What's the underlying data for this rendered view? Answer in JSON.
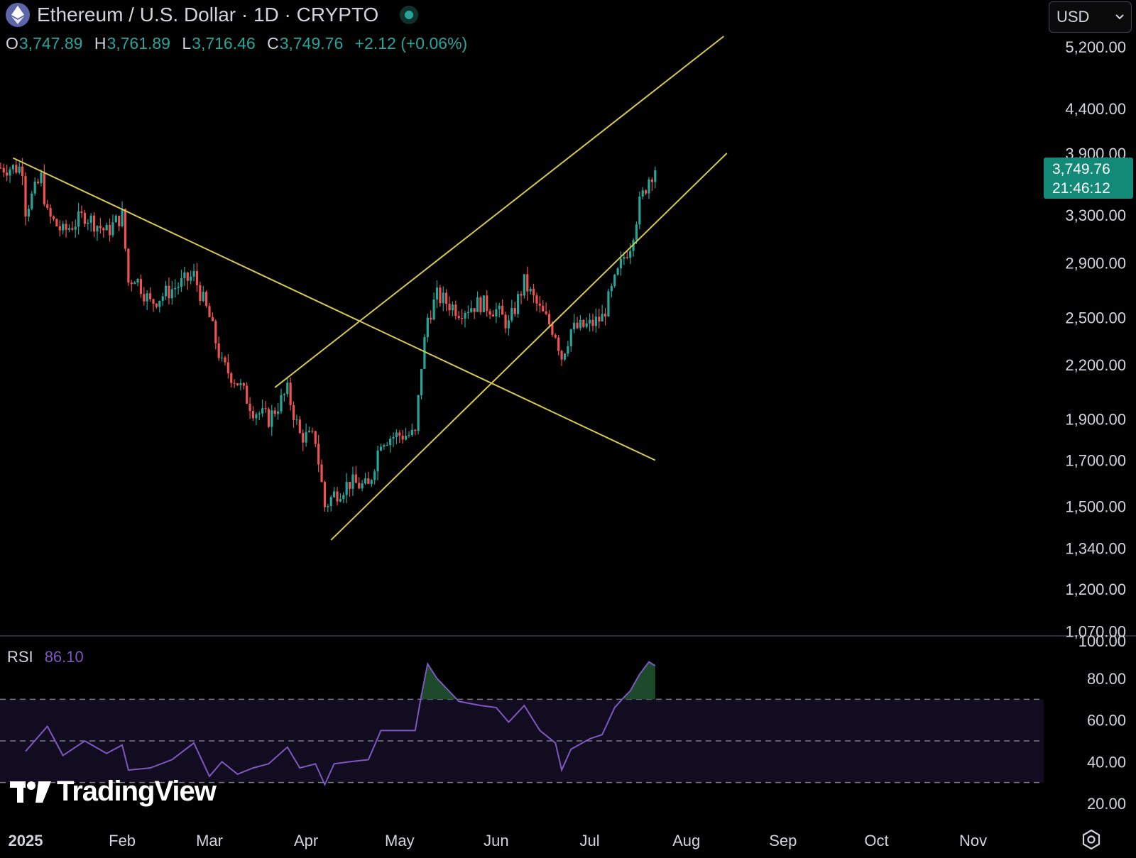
{
  "header": {
    "symbol_title": "Ethereum / U.S. Dollar · 1D · CRYPTO",
    "ohlc": {
      "o_label": "O",
      "o": "3,747.89",
      "h_label": "H",
      "h": "3,761.89",
      "l_label": "L",
      "l": "3,716.46",
      "c_label": "C",
      "c": "3,749.76",
      "change": "+2.12 (+0.06%)"
    }
  },
  "currency": {
    "label": "USD"
  },
  "price_tag": {
    "price": "3,749.76",
    "countdown": "21:46:12"
  },
  "rsi": {
    "label": "RSI",
    "value": "86.10"
  },
  "logo": {
    "text": "TradingView"
  },
  "colors": {
    "up": "#26a69a",
    "down": "#ef5350",
    "trendline": "#d6c94c",
    "rsi_line": "#7e57c2",
    "rsi_band": "#110c1f",
    "rsi_overbought_fill": "#1e4a2c"
  },
  "chart_data": {
    "type": "candlestick",
    "price_axis_ticks": [
      "5,200.00",
      "4,400.00",
      "3,900.00",
      "3,300.00",
      "2,900.00",
      "2,500.00",
      "2,200.00",
      "1,900.00",
      "1,700.00",
      "1,500.00",
      "1,340.00",
      "1,200.00",
      "1,070.00"
    ],
    "price_axis_scale": "log",
    "rsi_axis_ticks": [
      "100.00",
      "80.00",
      "60.00",
      "40.00",
      "20.00"
    ],
    "rsi_levels": [
      70,
      50,
      30
    ],
    "x_axis_labels": [
      "2025",
      "Feb",
      "Mar",
      "Apr",
      "May",
      "Jun",
      "Jul",
      "Aug",
      "Sep",
      "Oct",
      "Nov"
    ],
    "close_series": [
      {
        "date": "2025-01-01",
        "close": 3350
      },
      {
        "date": "2025-01-06",
        "close": 3650
      },
      {
        "date": "2025-01-08",
        "close": 3300
      },
      {
        "date": "2025-01-13",
        "close": 3150
      },
      {
        "date": "2025-01-20",
        "close": 3300
      },
      {
        "date": "2025-01-27",
        "close": 3150
      },
      {
        "date": "2025-02-01",
        "close": 3300
      },
      {
        "date": "2025-02-03",
        "close": 2750
      },
      {
        "date": "2025-02-05",
        "close": 2800
      },
      {
        "date": "2025-02-10",
        "close": 2600
      },
      {
        "date": "2025-02-17",
        "close": 2700
      },
      {
        "date": "2025-02-24",
        "close": 2800
      },
      {
        "date": "2025-03-01",
        "close": 2500
      },
      {
        "date": "2025-03-05",
        "close": 2200
      },
      {
        "date": "2025-03-10",
        "close": 2100
      },
      {
        "date": "2025-03-15",
        "close": 1950
      },
      {
        "date": "2025-03-20",
        "close": 1900
      },
      {
        "date": "2025-03-26",
        "close": 2050
      },
      {
        "date": "2025-03-30",
        "close": 1820
      },
      {
        "date": "2025-04-04",
        "close": 1800
      },
      {
        "date": "2025-04-07",
        "close": 1500
      },
      {
        "date": "2025-04-10",
        "close": 1550
      },
      {
        "date": "2025-04-15",
        "close": 1600
      },
      {
        "date": "2025-04-21",
        "close": 1580
      },
      {
        "date": "2025-04-25",
        "close": 1800
      },
      {
        "date": "2025-05-01",
        "close": 1820
      },
      {
        "date": "2025-05-06",
        "close": 1820
      },
      {
        "date": "2025-05-08",
        "close": 2200
      },
      {
        "date": "2025-05-10",
        "close": 2500
      },
      {
        "date": "2025-05-13",
        "close": 2650
      },
      {
        "date": "2025-05-20",
        "close": 2550
      },
      {
        "date": "2025-05-27",
        "close": 2600
      },
      {
        "date": "2025-06-01",
        "close": 2550
      },
      {
        "date": "2025-06-05",
        "close": 2450
      },
      {
        "date": "2025-06-10",
        "close": 2750
      },
      {
        "date": "2025-06-15",
        "close": 2550
      },
      {
        "date": "2025-06-20",
        "close": 2400
      },
      {
        "date": "2025-06-22",
        "close": 2250
      },
      {
        "date": "2025-06-25",
        "close": 2420
      },
      {
        "date": "2025-07-01",
        "close": 2450
      },
      {
        "date": "2025-07-05",
        "close": 2500
      },
      {
        "date": "2025-07-09",
        "close": 2750
      },
      {
        "date": "2025-07-12",
        "close": 2950
      },
      {
        "date": "2025-07-14",
        "close": 3050
      },
      {
        "date": "2025-07-17",
        "close": 3400
      },
      {
        "date": "2025-07-20",
        "close": 3650
      },
      {
        "date": "2025-07-22",
        "close": 3749.76
      }
    ],
    "rsi_series": [
      {
        "date": "2025-01-01",
        "rsi": 45
      },
      {
        "date": "2025-01-08",
        "rsi": 57
      },
      {
        "date": "2025-01-13",
        "rsi": 43
      },
      {
        "date": "2025-01-20",
        "rsi": 50
      },
      {
        "date": "2025-01-27",
        "rsi": 44
      },
      {
        "date": "2025-02-01",
        "rsi": 48
      },
      {
        "date": "2025-02-03",
        "rsi": 36
      },
      {
        "date": "2025-02-10",
        "rsi": 37
      },
      {
        "date": "2025-02-17",
        "rsi": 41
      },
      {
        "date": "2025-02-24",
        "rsi": 49
      },
      {
        "date": "2025-03-01",
        "rsi": 33
      },
      {
        "date": "2025-03-05",
        "rsi": 40
      },
      {
        "date": "2025-03-10",
        "rsi": 34
      },
      {
        "date": "2025-03-15",
        "rsi": 37
      },
      {
        "date": "2025-03-20",
        "rsi": 39
      },
      {
        "date": "2025-03-26",
        "rsi": 47
      },
      {
        "date": "2025-03-30",
        "rsi": 37
      },
      {
        "date": "2025-04-04",
        "rsi": 39
      },
      {
        "date": "2025-04-07",
        "rsi": 29
      },
      {
        "date": "2025-04-10",
        "rsi": 39
      },
      {
        "date": "2025-04-15",
        "rsi": 40
      },
      {
        "date": "2025-04-21",
        "rsi": 41
      },
      {
        "date": "2025-04-25",
        "rsi": 55
      },
      {
        "date": "2025-05-01",
        "rsi": 55
      },
      {
        "date": "2025-05-06",
        "rsi": 55
      },
      {
        "date": "2025-05-08",
        "rsi": 72
      },
      {
        "date": "2025-05-10",
        "rsi": 87
      },
      {
        "date": "2025-05-13",
        "rsi": 80
      },
      {
        "date": "2025-05-20",
        "rsi": 69
      },
      {
        "date": "2025-05-27",
        "rsi": 67
      },
      {
        "date": "2025-06-01",
        "rsi": 66
      },
      {
        "date": "2025-06-05",
        "rsi": 59
      },
      {
        "date": "2025-06-10",
        "rsi": 67
      },
      {
        "date": "2025-06-15",
        "rsi": 55
      },
      {
        "date": "2025-06-20",
        "rsi": 49
      },
      {
        "date": "2025-06-22",
        "rsi": 36
      },
      {
        "date": "2025-06-25",
        "rsi": 46
      },
      {
        "date": "2025-07-01",
        "rsi": 51
      },
      {
        "date": "2025-07-05",
        "rsi": 53
      },
      {
        "date": "2025-07-09",
        "rsi": 66
      },
      {
        "date": "2025-07-12",
        "rsi": 71
      },
      {
        "date": "2025-07-14",
        "rsi": 74
      },
      {
        "date": "2025-07-17",
        "rsi": 82
      },
      {
        "date": "2025-07-20",
        "rsi": 88
      },
      {
        "date": "2025-07-22",
        "rsi": 86.1
      }
    ],
    "trendlines": [
      {
        "name": "descending-resistance",
        "from": {
          "date": "2024-12-28",
          "price": 3850
        },
        "to": {
          "date": "2025-07-22",
          "price": 1700
        }
      },
      {
        "name": "channel-upper",
        "from": {
          "date": "2025-03-22",
          "price": 2070
        },
        "to": {
          "date": "2025-08-13",
          "price": 5350
        }
      },
      {
        "name": "channel-lower",
        "from": {
          "date": "2025-04-09",
          "price": 1370
        },
        "to": {
          "date": "2025-08-14",
          "price": 3900
        }
      }
    ]
  }
}
